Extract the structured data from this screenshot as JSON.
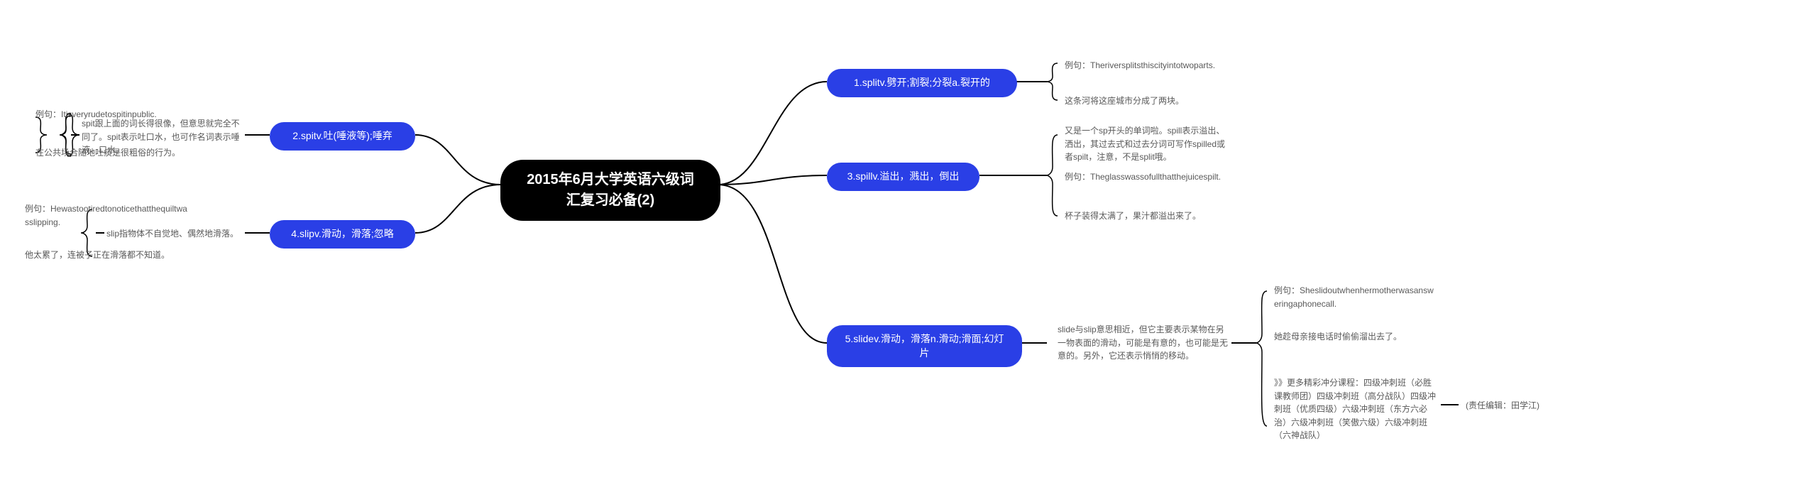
{
  "colors": {
    "root_bg": "#000000",
    "root_text": "#ffffff",
    "branch_bg": "#2a3fe6",
    "branch_text": "#ffffff",
    "leaf_text": "#595959",
    "connector": "#000000",
    "page_bg": "#ffffff"
  },
  "typography": {
    "root_fontsize": 20,
    "branch_fontsize": 14,
    "leaf_fontsize": 12
  },
  "root": {
    "title": "2015年6月大学英语六级词汇复习必备(2)"
  },
  "branches": {
    "b1": {
      "label": "1.splitv.劈开;割裂;分裂a.裂开的"
    },
    "b2": {
      "label": "2.spitv.吐(唾液等);唾弃"
    },
    "b3": {
      "label": "3.spillv.溢出，溅出，倒出"
    },
    "b4": {
      "label": "4.slipv.滑动，滑落;忽略"
    },
    "b5": {
      "label": "5.slidev.滑动，滑落n.滑动;滑面;幻灯片"
    }
  },
  "leaves": {
    "b1_l1": "例句：Theriversplitsthiscityintotwoparts.",
    "b1_l2": "这条河将这座城市分成了两块。",
    "b2_mid": "spit跟上面的词长得很像，但意思就完全不同了。spit表示吐口水，也可作名词表示唾液、口水。",
    "b2_l1": "例句：Itisveryrudetospitinpublic.",
    "b2_l2": "在公共场合随地吐痰是很粗俗的行为。",
    "b3_l1": "又是一个sp开头的单词啦。spill表示溢出、洒出，其过去式和过去分词可写作spilled或者spilt，注意，不是split哦。",
    "b3_l2": "例句：Theglasswassofullthatthejuicespilt.",
    "b3_l3": "杯子装得太满了，果汁都溢出来了。",
    "b4_mid": "slip指物体不自觉地、偶然地滑落。",
    "b4_l1": "例句：Hewastootiredtonoticethatthequiltwasslipping.",
    "b4_l2": "他太累了，连被子正在滑落都不知道。",
    "b5_mid": "slide与slip意思相近，但它主要表示某物在另一物表面的滑动，可能是有意的，也可能是无意的。另外，它还表示悄悄的移动。",
    "b5_l1": "例句：Sheslidoutwhenhermotherwasansweringaphonecall.",
    "b5_l2": "她趁母亲接电话时偷偷溜出去了。",
    "b5_l3": "》》更多精彩冲分课程：四级冲刺班（必胜课教师团）四级冲刺班（高分战队）四级冲刺班（优质四级）六级冲刺班（东方六必治）六级冲刺班（笑傲六级）六级冲刺班（六神战队）",
    "b5_r1": "(责任编辑：田学江)"
  }
}
